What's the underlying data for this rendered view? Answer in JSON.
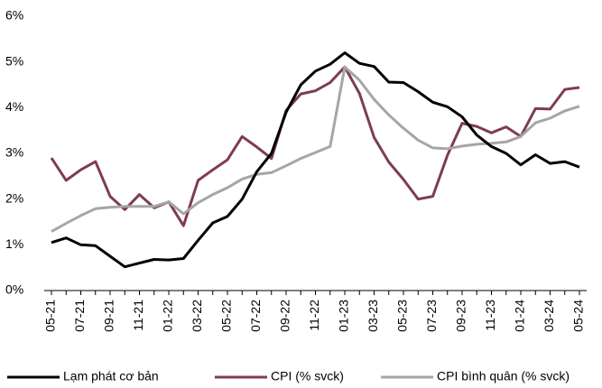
{
  "chart_data": {
    "type": "line",
    "categories": [
      "05-21",
      null,
      "07-21",
      null,
      "09-21",
      null,
      "11-21",
      null,
      "01-22",
      null,
      "03-22",
      null,
      "05-22",
      null,
      "07-22",
      null,
      "09-22",
      null,
      "11-22",
      null,
      "01-23",
      null,
      "03-23",
      null,
      "05-23",
      null,
      "07-23",
      null,
      "09-23",
      null,
      "11-23",
      null,
      "01-24",
      null,
      "03-24",
      null,
      "05-24"
    ],
    "series": [
      {
        "name": "Lạm phát cơ bản",
        "color": "#000000",
        "values": [
          1.05,
          1.15,
          1.0,
          0.98,
          0.75,
          0.52,
          0.6,
          0.68,
          0.67,
          0.7,
          1.1,
          1.48,
          1.62,
          2.0,
          2.6,
          3.0,
          3.9,
          4.5,
          4.8,
          4.95,
          5.2,
          4.97,
          4.9,
          4.56,
          4.55,
          4.35,
          4.12,
          4.02,
          3.8,
          3.4,
          3.15,
          3.0,
          2.75,
          2.97,
          2.78,
          2.82,
          2.7
        ]
      },
      {
        "name": "CPI (% svck)",
        "color": "#7f3b55",
        "values": [
          2.9,
          2.41,
          2.64,
          2.82,
          2.06,
          1.77,
          2.1,
          1.81,
          1.94,
          1.42,
          2.41,
          2.64,
          2.86,
          3.37,
          3.14,
          2.89,
          3.94,
          4.3,
          4.37,
          4.55,
          4.89,
          4.31,
          3.35,
          2.81,
          2.43,
          2.0,
          2.06,
          2.96,
          3.66,
          3.59,
          3.45,
          3.58,
          3.37,
          3.98,
          3.97,
          4.4,
          4.44
        ]
      },
      {
        "name": "CPI bình quân (% svck)",
        "color": "#a6a6a6",
        "values": [
          1.29,
          1.47,
          1.64,
          1.79,
          1.82,
          1.84,
          1.84,
          1.84,
          1.94,
          1.68,
          1.92,
          2.1,
          2.25,
          2.44,
          2.54,
          2.58,
          2.73,
          2.89,
          3.02,
          3.15,
          4.89,
          4.6,
          4.18,
          3.84,
          3.55,
          3.29,
          3.12,
          3.1,
          3.16,
          3.2,
          3.22,
          3.25,
          3.37,
          3.67,
          3.77,
          3.93,
          4.03
        ]
      }
    ],
    "ylim": [
      0,
      6
    ],
    "yticks": [
      {
        "value": 0,
        "label": "0%"
      },
      {
        "value": 1,
        "label": "1%"
      },
      {
        "value": 2,
        "label": "2%"
      },
      {
        "value": 3,
        "label": "3%"
      },
      {
        "value": 4,
        "label": "4%"
      },
      {
        "value": 5,
        "label": "5%"
      },
      {
        "value": 6,
        "label": "6%"
      }
    ],
    "grid": false,
    "legend": "bottom"
  }
}
